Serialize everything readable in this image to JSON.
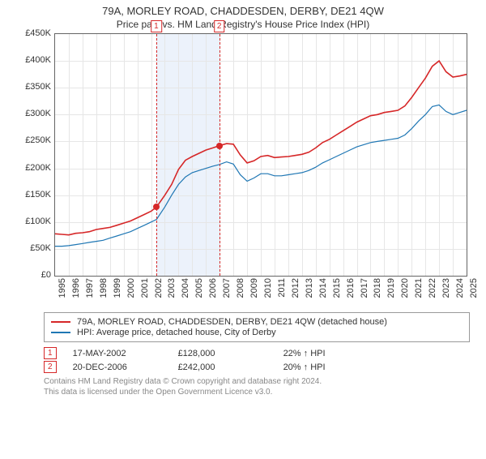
{
  "title": "79A, MORLEY ROAD, CHADDESDEN, DERBY, DE21 4QW",
  "subtitle": "Price paid vs. HM Land Registry's House Price Index (HPI)",
  "chart": {
    "type": "line",
    "x_start_year": 1995,
    "x_end_year": 2025,
    "ylim": [
      0,
      450000
    ],
    "ytick_step": 50000,
    "ytick_prefix": "£",
    "ytick_suffix": "K",
    "background_color": "#ffffff",
    "grid_color": "#e6e6e6",
    "axis_color": "#646464",
    "shade_band": {
      "from_year": 2002.4,
      "to_year": 2007.0,
      "color": "#ecf2fb"
    },
    "series": [
      {
        "name": "price_paid",
        "label": "79A, MORLEY ROAD, CHADDESDEN, DERBY, DE21 4QW (detached house)",
        "color": "#d62728",
        "line_width": 1.6,
        "points": [
          [
            1995.0,
            78
          ],
          [
            1995.5,
            77
          ],
          [
            1996,
            76
          ],
          [
            1996.5,
            79
          ],
          [
            1997,
            80
          ],
          [
            1997.5,
            82
          ],
          [
            1998,
            86
          ],
          [
            1998.5,
            88
          ],
          [
            1999,
            90
          ],
          [
            1999.5,
            94
          ],
          [
            2000,
            98
          ],
          [
            2000.5,
            102
          ],
          [
            2001,
            108
          ],
          [
            2001.5,
            114
          ],
          [
            2002,
            120
          ],
          [
            2002.4,
            128
          ],
          [
            2003,
            150
          ],
          [
            2003.5,
            170
          ],
          [
            2004,
            198
          ],
          [
            2004.5,
            215
          ],
          [
            2005,
            222
          ],
          [
            2005.5,
            228
          ],
          [
            2006,
            234
          ],
          [
            2006.5,
            238
          ],
          [
            2006.97,
            242
          ],
          [
            2007.5,
            246
          ],
          [
            2008,
            245
          ],
          [
            2008.5,
            225
          ],
          [
            2009,
            210
          ],
          [
            2009.5,
            214
          ],
          [
            2010,
            222
          ],
          [
            2010.5,
            224
          ],
          [
            2011,
            220
          ],
          [
            2011.5,
            221
          ],
          [
            2012,
            222
          ],
          [
            2012.5,
            224
          ],
          [
            2013,
            226
          ],
          [
            2013.5,
            230
          ],
          [
            2014,
            238
          ],
          [
            2014.5,
            248
          ],
          [
            2015,
            254
          ],
          [
            2015.5,
            262
          ],
          [
            2016,
            270
          ],
          [
            2016.5,
            278
          ],
          [
            2017,
            286
          ],
          [
            2017.5,
            292
          ],
          [
            2018,
            298
          ],
          [
            2018.5,
            300
          ],
          [
            2019,
            304
          ],
          [
            2019.5,
            306
          ],
          [
            2020,
            308
          ],
          [
            2020.5,
            316
          ],
          [
            2021,
            332
          ],
          [
            2021.5,
            350
          ],
          [
            2022,
            368
          ],
          [
            2022.5,
            390
          ],
          [
            2023,
            400
          ],
          [
            2023.5,
            380
          ],
          [
            2024,
            370
          ],
          [
            2024.5,
            372
          ],
          [
            2025,
            375
          ]
        ]
      },
      {
        "name": "hpi",
        "label": "HPI: Average price, detached house, City of Derby",
        "color": "#1f77b4",
        "line_width": 1.2,
        "points": [
          [
            1995.0,
            55
          ],
          [
            1995.5,
            55
          ],
          [
            1996,
            56
          ],
          [
            1996.5,
            58
          ],
          [
            1997,
            60
          ],
          [
            1997.5,
            62
          ],
          [
            1998,
            64
          ],
          [
            1998.5,
            66
          ],
          [
            1999,
            70
          ],
          [
            1999.5,
            74
          ],
          [
            2000,
            78
          ],
          [
            2000.5,
            82
          ],
          [
            2001,
            88
          ],
          [
            2001.5,
            94
          ],
          [
            2002,
            100
          ],
          [
            2002.4,
            105
          ],
          [
            2003,
            128
          ],
          [
            2003.5,
            150
          ],
          [
            2004,
            170
          ],
          [
            2004.5,
            184
          ],
          [
            2005,
            192
          ],
          [
            2005.5,
            196
          ],
          [
            2006,
            200
          ],
          [
            2006.5,
            204
          ],
          [
            2006.97,
            207
          ],
          [
            2007.5,
            212
          ],
          [
            2008,
            208
          ],
          [
            2008.5,
            188
          ],
          [
            2009,
            176
          ],
          [
            2009.5,
            182
          ],
          [
            2010,
            190
          ],
          [
            2010.5,
            190
          ],
          [
            2011,
            186
          ],
          [
            2011.5,
            186
          ],
          [
            2012,
            188
          ],
          [
            2012.5,
            190
          ],
          [
            2013,
            192
          ],
          [
            2013.5,
            196
          ],
          [
            2014,
            202
          ],
          [
            2014.5,
            210
          ],
          [
            2015,
            216
          ],
          [
            2015.5,
            222
          ],
          [
            2016,
            228
          ],
          [
            2016.5,
            234
          ],
          [
            2017,
            240
          ],
          [
            2017.5,
            244
          ],
          [
            2018,
            248
          ],
          [
            2018.5,
            250
          ],
          [
            2019,
            252
          ],
          [
            2019.5,
            254
          ],
          [
            2020,
            256
          ],
          [
            2020.5,
            262
          ],
          [
            2021,
            274
          ],
          [
            2021.5,
            288
          ],
          [
            2022,
            300
          ],
          [
            2022.5,
            315
          ],
          [
            2023,
            318
          ],
          [
            2023.5,
            306
          ],
          [
            2024,
            300
          ],
          [
            2024.5,
            304
          ],
          [
            2025,
            308
          ]
        ]
      }
    ],
    "events": [
      {
        "idx": "1",
        "year": 2002.38,
        "value_k": 128,
        "date": "17-MAY-2002",
        "price": "£128,000",
        "delta": "22% ↑ HPI"
      },
      {
        "idx": "2",
        "year": 2006.97,
        "value_k": 242,
        "date": "20-DEC-2006",
        "price": "£242,000",
        "delta": "20% ↑ HPI"
      }
    ],
    "event_marker_color": "#d62728",
    "event_point_color": "#d62728"
  },
  "footer": {
    "line1": "Contains HM Land Registry data © Crown copyright and database right 2024.",
    "line2": "This data is licensed under the Open Government Licence v3.0."
  }
}
